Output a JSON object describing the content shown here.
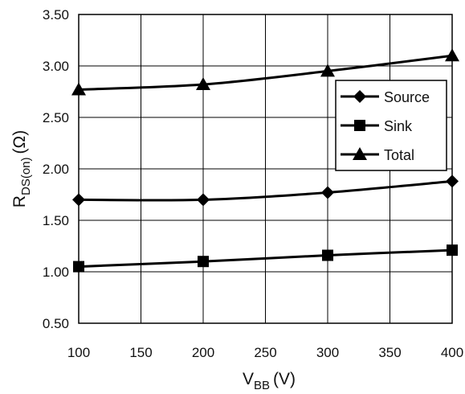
{
  "chart_data": {
    "type": "line",
    "x": [
      100,
      200,
      300,
      400
    ],
    "series": [
      {
        "name": "Source",
        "marker": "diamond",
        "values": [
          1.7,
          1.7,
          1.77,
          1.88
        ]
      },
      {
        "name": "Sink",
        "marker": "square",
        "values": [
          1.05,
          1.1,
          1.16,
          1.21
        ]
      },
      {
        "name": "Total",
        "marker": "triangle",
        "values": [
          2.77,
          2.82,
          2.95,
          3.1
        ]
      }
    ],
    "xlim": [
      100,
      400
    ],
    "ylim": [
      0.5,
      3.5
    ],
    "xticks": [
      "100",
      "150",
      "200",
      "250",
      "300",
      "350",
      "400"
    ],
    "yticks": [
      "0.50",
      "1.00",
      "1.50",
      "2.00",
      "2.50",
      "3.00",
      "3.50"
    ],
    "xticks_values": [
      100,
      150,
      200,
      250,
      300,
      350,
      400
    ],
    "yticks_values": [
      0.5,
      1.0,
      1.5,
      2.0,
      2.5,
      3.0,
      3.5
    ],
    "xlabel": {
      "main": "V",
      "sub": "BB",
      "unit": "(V)"
    },
    "ylabel": {
      "main": "R",
      "sub": "DS(on)",
      "unit": "(Ω)"
    },
    "grid": true,
    "legend_position": "right",
    "line_color": "#000000"
  }
}
